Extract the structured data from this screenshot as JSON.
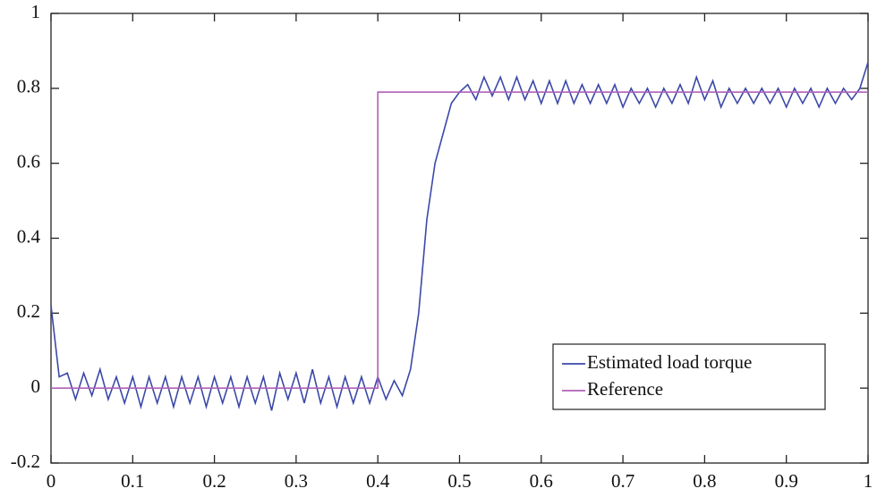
{
  "chart_data": {
    "type": "line",
    "xlim": [
      0,
      1
    ],
    "ylim": [
      -0.2,
      1
    ],
    "xticks": [
      0,
      0.1,
      0.2,
      0.3,
      0.4,
      0.5,
      0.6,
      0.7,
      0.8,
      0.9,
      1
    ],
    "yticks": [
      -0.2,
      0,
      0.2,
      0.4,
      0.6,
      0.8,
      1
    ],
    "legend": "lower right",
    "series": [
      {
        "name": "Estimated load torque",
        "color": "#3b48a8",
        "x": [
          0,
          0.01,
          0.02,
          0.03,
          0.04,
          0.05,
          0.06,
          0.07,
          0.08,
          0.09,
          0.1,
          0.11,
          0.12,
          0.13,
          0.14,
          0.15,
          0.16,
          0.17,
          0.18,
          0.19,
          0.2,
          0.21,
          0.22,
          0.23,
          0.24,
          0.25,
          0.26,
          0.27,
          0.28,
          0.29,
          0.3,
          0.31,
          0.32,
          0.33,
          0.34,
          0.35,
          0.36,
          0.37,
          0.38,
          0.39,
          0.4,
          0.41,
          0.42,
          0.43,
          0.44,
          0.45,
          0.46,
          0.47,
          0.48,
          0.49,
          0.5,
          0.51,
          0.52,
          0.53,
          0.54,
          0.55,
          0.56,
          0.57,
          0.58,
          0.59,
          0.6,
          0.61,
          0.62,
          0.63,
          0.64,
          0.65,
          0.66,
          0.67,
          0.68,
          0.69,
          0.7,
          0.71,
          0.72,
          0.73,
          0.74,
          0.75,
          0.76,
          0.77,
          0.78,
          0.79,
          0.8,
          0.81,
          0.82,
          0.83,
          0.84,
          0.85,
          0.86,
          0.87,
          0.88,
          0.89,
          0.9,
          0.91,
          0.92,
          0.93,
          0.94,
          0.95,
          0.96,
          0.97,
          0.98,
          0.99,
          1
        ],
        "values": [
          0.22,
          0.03,
          0.04,
          -0.03,
          0.04,
          -0.02,
          0.05,
          -0.03,
          0.03,
          -0.04,
          0.03,
          -0.05,
          0.03,
          -0.04,
          0.03,
          -0.05,
          0.03,
          -0.04,
          0.03,
          -0.05,
          0.03,
          -0.04,
          0.03,
          -0.05,
          0.03,
          -0.04,
          0.03,
          -0.06,
          0.04,
          -0.03,
          0.04,
          -0.04,
          0.05,
          -0.04,
          0.03,
          -0.05,
          0.03,
          -0.04,
          0.03,
          -0.04,
          0.03,
          -0.03,
          0.02,
          -0.02,
          0.05,
          0.2,
          0.45,
          0.6,
          0.68,
          0.76,
          0.79,
          0.81,
          0.77,
          0.83,
          0.78,
          0.83,
          0.77,
          0.83,
          0.77,
          0.82,
          0.76,
          0.82,
          0.76,
          0.82,
          0.76,
          0.81,
          0.76,
          0.81,
          0.76,
          0.81,
          0.75,
          0.8,
          0.76,
          0.8,
          0.75,
          0.8,
          0.76,
          0.81,
          0.76,
          0.83,
          0.77,
          0.82,
          0.75,
          0.8,
          0.76,
          0.8,
          0.76,
          0.8,
          0.76,
          0.8,
          0.75,
          0.8,
          0.76,
          0.8,
          0.75,
          0.8,
          0.76,
          0.8,
          0.77,
          0.8,
          0.87
        ]
      },
      {
        "name": "Reference",
        "color": "#b060b8",
        "x": [
          0,
          0.4,
          0.4,
          1
        ],
        "values": [
          0,
          0,
          0.79,
          0.79
        ]
      }
    ]
  }
}
